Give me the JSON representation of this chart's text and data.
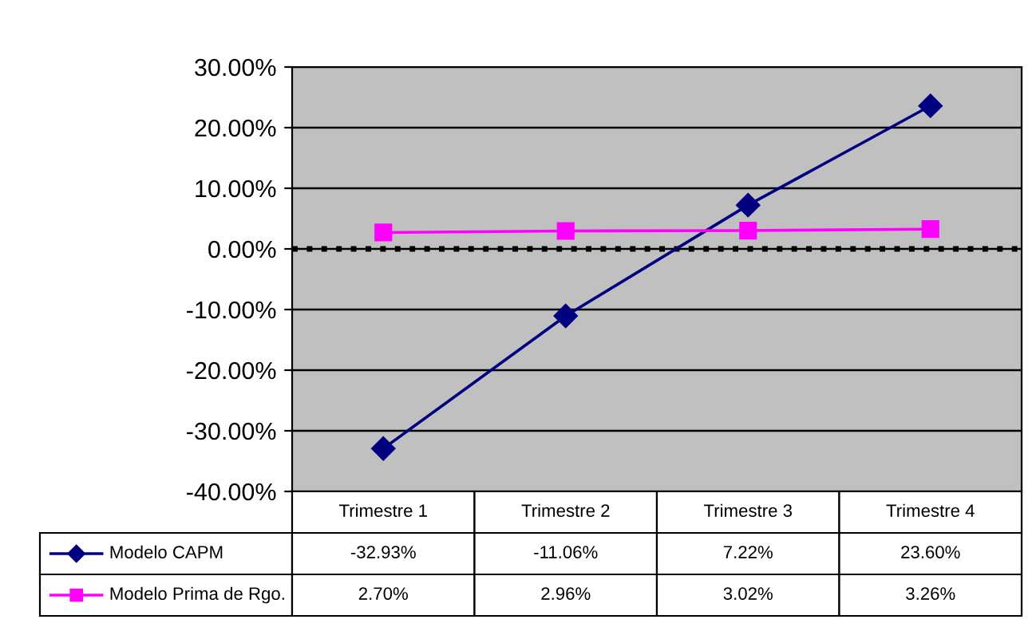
{
  "chart_data": {
    "type": "line",
    "categories": [
      "Trimestre 1",
      "Trimestre 2",
      "Trimestre 3",
      "Trimestre 4"
    ],
    "series": [
      {
        "name": "Modelo CAPM",
        "color": "#000080",
        "marker": "diamond",
        "values": [
          -32.93,
          -11.06,
          7.22,
          23.6
        ],
        "value_labels": [
          "-32.93%",
          "-11.06%",
          "7.22%",
          "23.60%"
        ]
      },
      {
        "name": "Modelo Prima de Rgo.",
        "color": "#ff00ff",
        "marker": "square",
        "values": [
          2.7,
          2.96,
          3.02,
          3.26
        ],
        "value_labels": [
          "2.70%",
          "2.96%",
          "3.02%",
          "3.26%"
        ]
      }
    ],
    "ylim": [
      -40,
      30
    ],
    "yticks": [
      {
        "value": -40,
        "label": "-40.00%"
      },
      {
        "value": -30,
        "label": "-30.00%"
      },
      {
        "value": -20,
        "label": "-20.00%"
      },
      {
        "value": -10,
        "label": "-10.00%"
      },
      {
        "value": 0,
        "label": "0.00%"
      },
      {
        "value": 10,
        "label": "10.00%"
      },
      {
        "value": 20,
        "label": "20.00%"
      },
      {
        "value": 30,
        "label": "30.00%"
      }
    ],
    "grid": "y",
    "legend": "bottom",
    "ref_lines": [
      {
        "axis": "y",
        "value": 0,
        "color": "#000000",
        "line_style": "dotted"
      }
    ]
  }
}
